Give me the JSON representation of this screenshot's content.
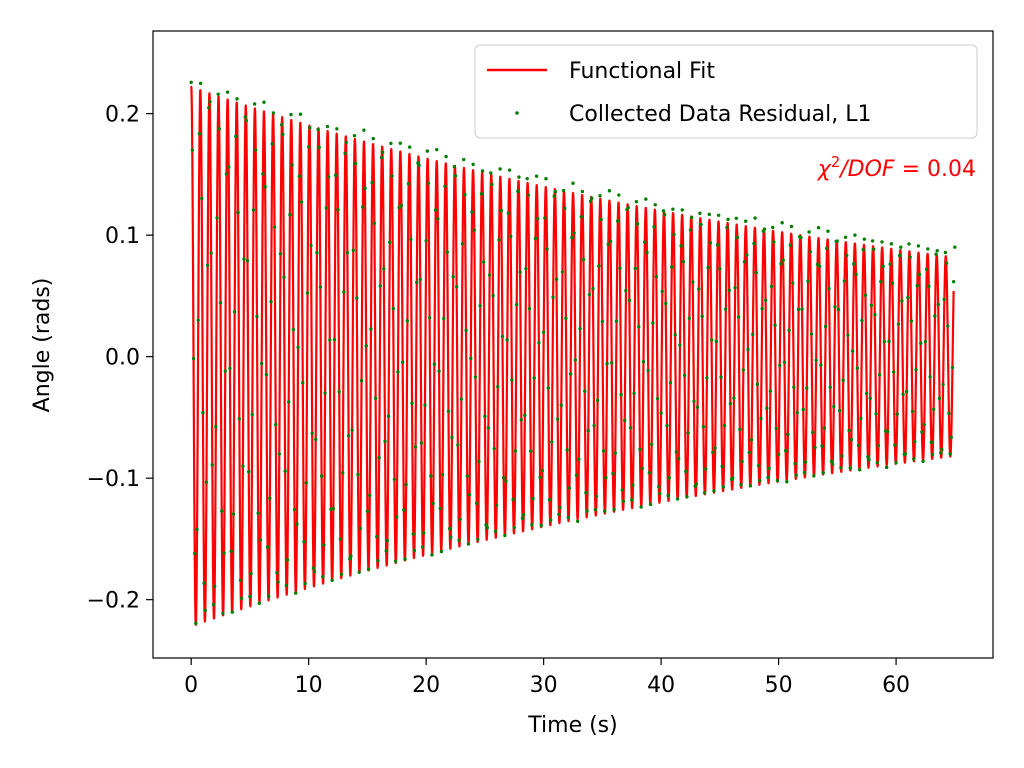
{
  "chart_data": {
    "type": "line",
    "title": "",
    "xlabel": "Time (s)",
    "ylabel": "Angle (rads)",
    "xlim": [
      -3.25,
      68.25
    ],
    "ylim": [
      -0.248,
      0.268
    ],
    "xticks": [
      0,
      10,
      20,
      30,
      40,
      50,
      60
    ],
    "xtick_labels": [
      "0",
      "10",
      "20",
      "30",
      "40",
      "50",
      "60"
    ],
    "yticks": [
      -0.2,
      -0.1,
      0.0,
      0.1,
      0.2
    ],
    "ytick_labels": [
      "−0.2",
      "−0.1",
      "0.0",
      "0.1",
      "0.2"
    ],
    "grid": false,
    "legend_position": "top-right",
    "series": [
      {
        "name": "Functional Fit",
        "kind": "line",
        "color": "#ff0000",
        "model": {
          "form": "A * exp(-t / tau) * cos(omega * t + phi) + c",
          "A": 0.222,
          "tau": 65.0,
          "omega": 8.12,
          "phi": -0.05,
          "c": 0.0
        },
        "t_range": [
          0,
          64.9
        ]
      },
      {
        "name": "Collected Data Residual, L1",
        "kind": "scatter",
        "color": "#008000",
        "sample_interval": 0.1,
        "t_range": [
          0,
          65
        ]
      }
    ],
    "annotations": [
      {
        "text": "χ²/DOF = 0.04",
        "color": "#ff0000",
        "position": "top-right"
      }
    ]
  }
}
